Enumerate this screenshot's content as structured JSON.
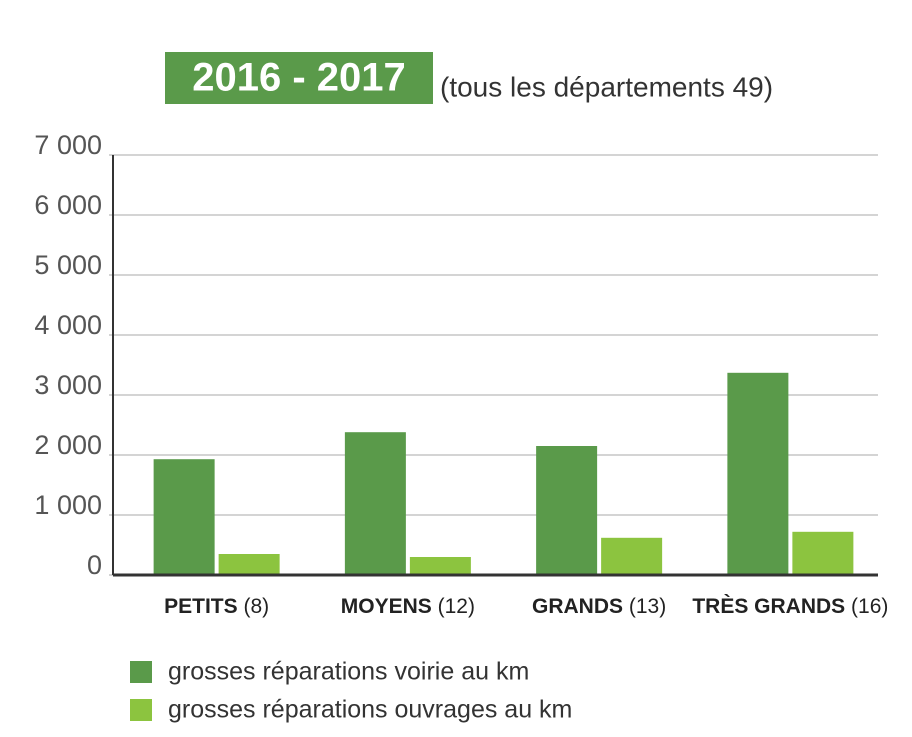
{
  "chart_data": {
    "type": "bar",
    "title": "2016 - 2017",
    "subtitle": "(tous les départements 49)",
    "categories": [
      "PETITS (8)",
      "MOYENS (12)",
      "GRANDS (13)",
      "TRÈS GRANDS (16)"
    ],
    "series": [
      {
        "name": "grosses réparations voirie au km",
        "color": "#5a9a4a",
        "values": [
          1930,
          2380,
          2150,
          3370
        ]
      },
      {
        "name": "grosses réparations ouvrages au km",
        "color": "#8cc43f",
        "values": [
          350,
          300,
          620,
          720
        ]
      }
    ],
    "ylim": [
      0,
      7000
    ],
    "yticks": [
      0,
      {
        "value": 1000,
        "label": "1 000"
      },
      {
        "value": 2000,
        "label": "2 000"
      },
      {
        "value": 3000,
        "label": "3 000"
      },
      {
        "value": 4000,
        "label": "4 000"
      },
      {
        "value": 5000,
        "label": "5 000"
      },
      {
        "value": 6000,
        "label": "6 000"
      },
      {
        "value": 7000,
        "label": "7 000"
      }
    ],
    "grid": true,
    "legend": "bottom-left"
  }
}
